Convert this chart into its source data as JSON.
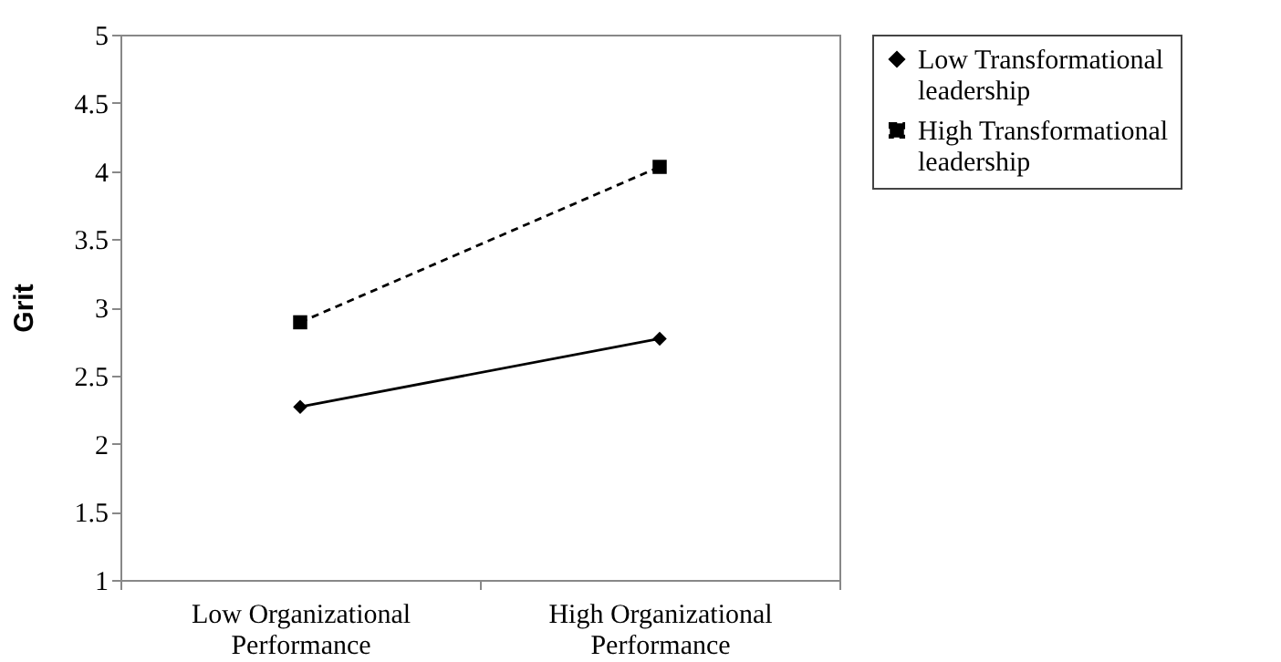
{
  "chart_data": {
    "type": "line",
    "ylabel": "Grit",
    "categories": [
      "Low Organizational Performance",
      "High Organizational Performance"
    ],
    "series": [
      {
        "name": "Low Transformational leadership",
        "color": "#000000",
        "values": [
          2.27,
          2.77
        ],
        "marker": "diamond",
        "line_style": "solid"
      },
      {
        "name": "High Transformational leadership",
        "color": "#000000",
        "values": [
          2.89,
          4.03
        ],
        "marker": "square",
        "line_style": "dashed"
      }
    ],
    "ylim": [
      1,
      5
    ],
    "yticks": [
      1,
      1.5,
      2,
      2.5,
      3,
      3.5,
      4,
      4.5,
      5
    ],
    "legend": "right"
  }
}
